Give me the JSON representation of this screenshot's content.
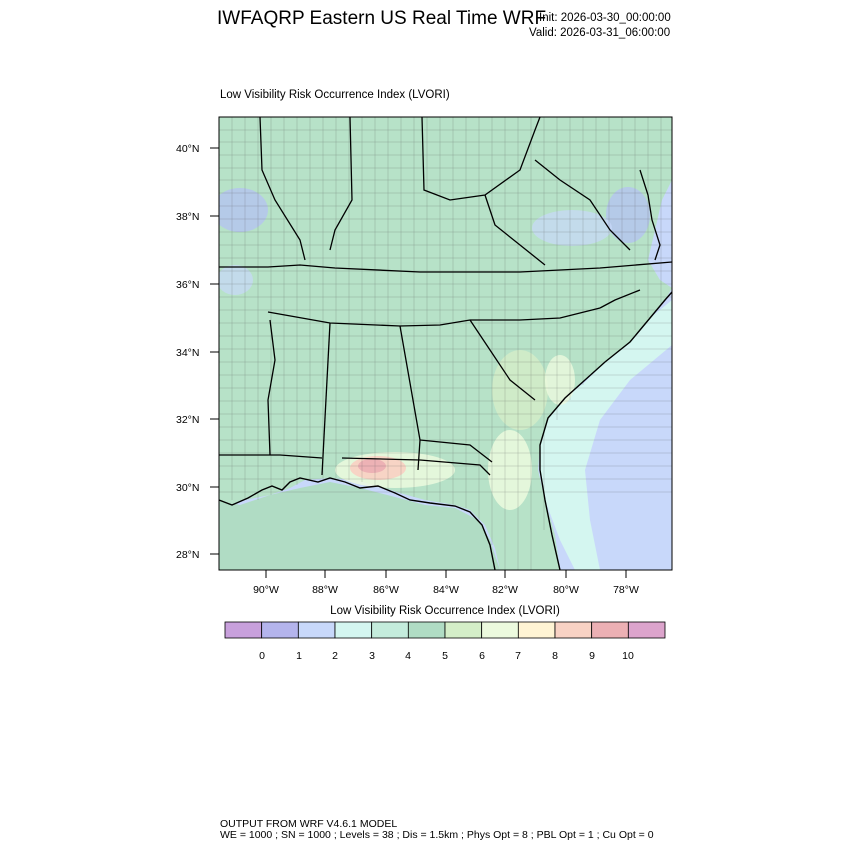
{
  "header": {
    "title": "IWFAQRP Eastern US Real Time WRF",
    "init": "Init: 2026-03-30_00:00:00",
    "valid": "Valid: 2026-03-31_06:00:00"
  },
  "plot": {
    "subtitle": "Low Visibility Risk Occurrence Index   (LVORI)",
    "lat_labels": [
      "40°N",
      "38°N",
      "36°N",
      "34°N",
      "32°N",
      "30°N",
      "28°N"
    ],
    "lon_labels": [
      "90°W",
      "88°W",
      "86°W",
      "84°W",
      "82°W",
      "80°W",
      "78°W"
    ]
  },
  "colorbar": {
    "title": "Low Visibility Risk Occurrence Index  (LVORI)",
    "labels": [
      "0",
      "1",
      "2",
      "3",
      "4",
      "5",
      "6",
      "7",
      "8",
      "9",
      "10"
    ],
    "colors": [
      "#c8a0dc",
      "#b4b4ec",
      "#c8d8fa",
      "#d4f6f0",
      "#c4ecdc",
      "#b0dcc4",
      "#d4eec8",
      "#ecfade",
      "#fff4d4",
      "#f8d2c4",
      "#ecb0b4",
      "#dca4cc"
    ]
  },
  "footer": {
    "line1": "OUTPUT FROM WRF V4.6.1 MODEL",
    "line2": "WE = 1000 ; SN = 1000 ; Levels = 38 ; Dis = 1.5km ; Phys Opt = 8 ; PBL Opt = 1 ; Cu Opt = 0"
  }
}
